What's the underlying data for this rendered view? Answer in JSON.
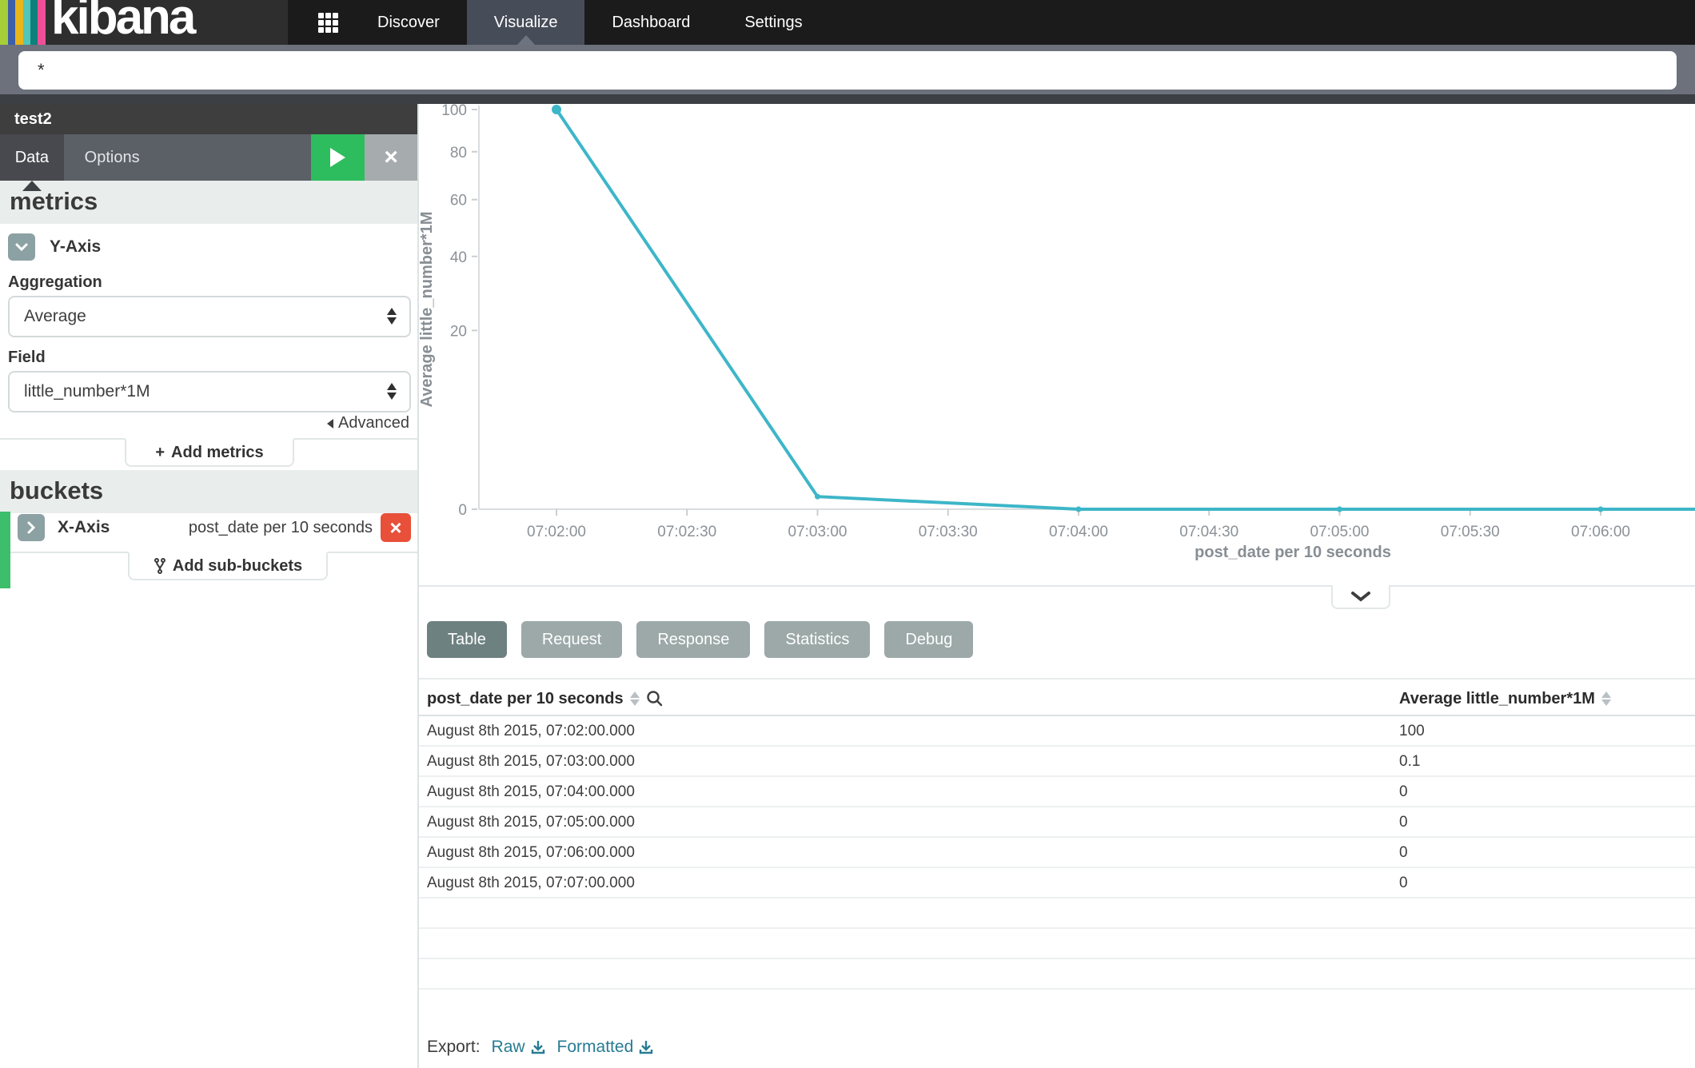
{
  "app": {
    "logo": "kibana"
  },
  "nav": {
    "items": [
      "Discover",
      "Visualize",
      "Dashboard",
      "Settings"
    ],
    "active": "Visualize"
  },
  "query": {
    "value": "*"
  },
  "panel": {
    "title": "test2",
    "data_tab": "Data",
    "options_tab": "Options"
  },
  "sidebar": {
    "metrics_heading": "metrics",
    "y_axis_label": "Y-Axis",
    "aggregation_label": "Aggregation",
    "aggregation_value": "Average",
    "field_label": "Field",
    "field_value": "little_number*1M",
    "advanced_label": "Advanced",
    "add_metrics_label": "Add metrics",
    "buckets_heading": "buckets",
    "x_axis_label": "X-Axis",
    "x_axis_agg": "post_date per 10 seconds",
    "add_sub_buckets_label": "Add sub-buckets"
  },
  "chart_data": {
    "type": "line",
    "x": [
      "07:02:00",
      "07:03:00",
      "07:04:00",
      "07:05:00",
      "07:06:00",
      "07:07:00"
    ],
    "values": [
      100,
      0.1,
      0,
      0,
      0,
      0
    ],
    "xlabel": "post_date per 10 seconds",
    "ylabel": "Average little_number*1M",
    "ylim": [
      0,
      100
    ],
    "yticks": [
      0,
      20,
      40,
      60,
      80,
      100
    ],
    "xticks": [
      "07:02:00",
      "07:02:30",
      "07:03:00",
      "07:03:30",
      "07:04:00",
      "07:04:30",
      "07:05:00",
      "07:05:30",
      "07:06:00"
    ],
    "scale": "square root",
    "grid": "off",
    "line_color": "#3db6c8"
  },
  "details": {
    "tabs": [
      "Table",
      "Request",
      "Response",
      "Statistics",
      "Debug"
    ],
    "active_tab": "Table"
  },
  "table": {
    "columns": [
      "post_date per 10 seconds",
      "Average little_number*1M"
    ],
    "rows": [
      {
        "date": "August 8th 2015, 07:02:00.000",
        "value": "100"
      },
      {
        "date": "August 8th 2015, 07:03:00.000",
        "value": "0.1"
      },
      {
        "date": "August 8th 2015, 07:04:00.000",
        "value": "0"
      },
      {
        "date": "August 8th 2015, 07:05:00.000",
        "value": "0"
      },
      {
        "date": "August 8th 2015, 07:06:00.000",
        "value": "0"
      },
      {
        "date": "August 8th 2015, 07:07:00.000",
        "value": "0"
      }
    ]
  },
  "export": {
    "label": "Export:",
    "raw": "Raw",
    "formatted": "Formatted"
  },
  "colors": {
    "accent_green": "#2ebd5e",
    "remove_red": "#e8503a",
    "line_teal": "#3db6c8",
    "link_teal": "#277c92",
    "logo_stripes": [
      "#a6ce38",
      "#3b5fa8",
      "#e9b517",
      "#51c6b8",
      "#0e7f7b",
      "#ef4f98"
    ]
  }
}
